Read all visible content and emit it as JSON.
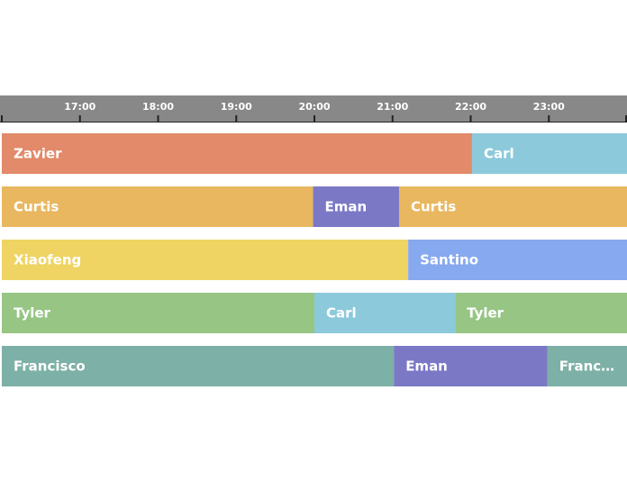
{
  "chart_data": {
    "type": "timeline",
    "title": "",
    "axis": {
      "start": "16:00",
      "end": "24:00",
      "tick_labels": [
        "17:00",
        "18:00",
        "19:00",
        "20:00",
        "21:00",
        "22:00",
        "23:00"
      ]
    },
    "rows": [
      {
        "segments": [
          {
            "label": "Zavier",
            "start": "16:00",
            "end": "22:01",
            "color": "#e28a6a"
          },
          {
            "label": "Carl",
            "start": "22:01",
            "end": "24:00",
            "color": "#8ccadb"
          }
        ]
      },
      {
        "segments": [
          {
            "label": "Curtis",
            "start": "16:00",
            "end": "19:59",
            "color": "#e8b75f"
          },
          {
            "label": "Eman",
            "start": "19:59",
            "end": "21:05",
            "color": "#7b78c6"
          },
          {
            "label": "Curtis",
            "start": "21:05",
            "end": "24:00",
            "color": "#e8b75f"
          }
        ]
      },
      {
        "segments": [
          {
            "label": "Xiaofeng",
            "start": "16:00",
            "end": "21:12",
            "color": "#efd463"
          },
          {
            "label": "Santino",
            "start": "21:12",
            "end": "24:00",
            "color": "#86a9ef"
          }
        ]
      },
      {
        "segments": [
          {
            "label": "Tyler",
            "start": "16:00",
            "end": "20:00",
            "color": "#96c584"
          },
          {
            "label": "Carl",
            "start": "20:00",
            "end": "21:48",
            "color": "#8ccadb"
          },
          {
            "label": "Tyler",
            "start": "21:48",
            "end": "24:00",
            "color": "#96c584"
          }
        ]
      },
      {
        "segments": [
          {
            "label": "Francisco",
            "start": "16:00",
            "end": "21:01",
            "color": "#7db0a6"
          },
          {
            "label": "Eman",
            "start": "21:01",
            "end": "22:59",
            "color": "#7b78c6"
          },
          {
            "label": "Francisco",
            "start": "22:59",
            "end": "24:00",
            "color": "#7db0a6"
          }
        ]
      }
    ],
    "axis_color": "#888888"
  }
}
